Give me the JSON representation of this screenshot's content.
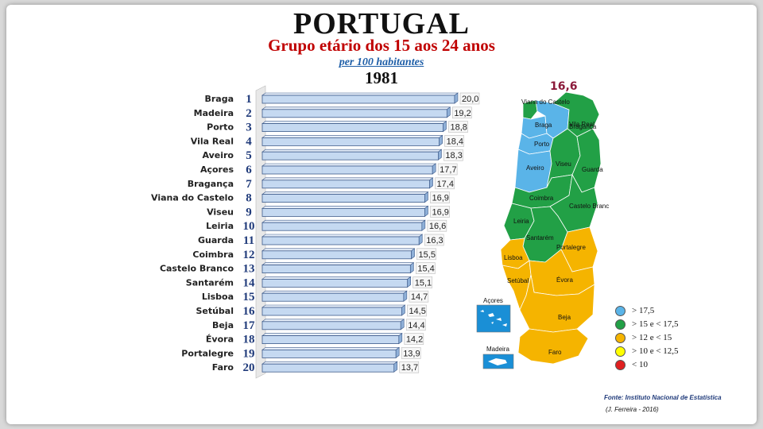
{
  "header": {
    "title": "PORTUGAL",
    "subtitle": "Grupo etário dos 15 aos 24 anos",
    "unit": "per 100 habitantes",
    "year": "1981"
  },
  "chart_data": {
    "type": "bar",
    "orientation": "horizontal",
    "categories": [
      "Braga",
      "Madeira",
      "Porto",
      "Vila Real",
      "Aveiro",
      "Açores",
      "Bragança",
      "Viana do Castelo",
      "Viseu",
      "Leiria",
      "Guarda",
      "Coimbra",
      "Castelo Branco",
      "Santarém",
      "Lisboa",
      "Setúbal",
      "Beja",
      "Évora",
      "Portalegre",
      "Faro"
    ],
    "ranks": [
      "1",
      "2",
      "3",
      "4",
      "5",
      "6",
      "7",
      "8",
      "9",
      "10",
      "11",
      "12",
      "13",
      "14",
      "15",
      "16",
      "17",
      "18",
      "19",
      "20"
    ],
    "values": [
      20.0,
      19.2,
      18.8,
      18.4,
      18.3,
      17.7,
      17.4,
      16.9,
      16.9,
      16.6,
      16.3,
      15.5,
      15.4,
      15.1,
      14.7,
      14.5,
      14.4,
      14.2,
      13.9,
      13.7
    ],
    "value_labels": [
      "20,0",
      "19,2",
      "18,8",
      "18,4",
      "18,3",
      "17,7",
      "17,4",
      "16,9",
      "16,9",
      "16,6",
      "16,3",
      "15,5",
      "15,4",
      "15,1",
      "14,7",
      "14,5",
      "14,4",
      "14,2",
      "13,9",
      "13,7"
    ],
    "xlim": [
      0,
      20
    ],
    "grid": false,
    "bar_color": "#c5d9f1"
  },
  "map": {
    "national_value": "16,6",
    "labels": [
      "Viana do Castelo",
      "Braga",
      "Vila Real",
      "Bragança",
      "Porto",
      "Aveiro",
      "Viseu",
      "Guarda",
      "Coimbra",
      "Castelo Branco",
      "Leiria",
      "Santarém",
      "Lisboa",
      "Portalegre",
      "Setúbal",
      "Évora",
      "Beja",
      "Faro",
      "Açores",
      "Madeira"
    ]
  },
  "legend": {
    "items": [
      {
        "label": "> 17,5",
        "color": "#5ab4e8"
      },
      {
        "label": "> 15 e < 17,5",
        "color": "#22a046"
      },
      {
        "label": "> 12 e < 15",
        "color": "#f5b400"
      },
      {
        "label": "> 10  e < 12,5",
        "color": "#ffff00"
      },
      {
        "label": "< 10",
        "color": "#e02020"
      }
    ]
  },
  "footer": {
    "source": "Fonte: Instituto Nacional de Estatística",
    "credit": "(J. Ferreira - 2016)"
  }
}
